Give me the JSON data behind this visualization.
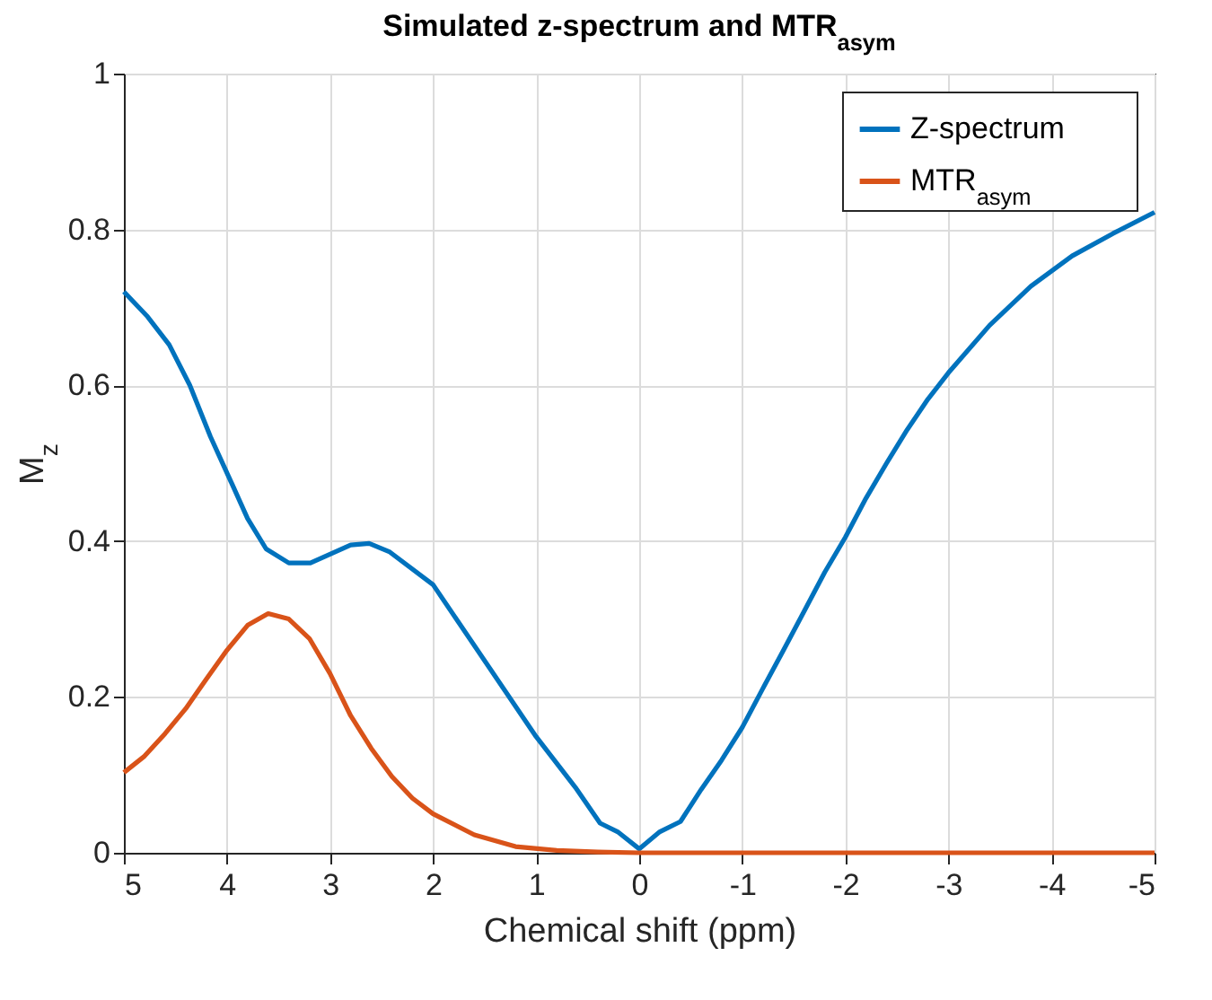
{
  "chart_data": {
    "type": "line",
    "title": "Simulated z-spectrum and MTR$_{asym}$",
    "xlabel": "Chemical shift (ppm)",
    "ylabel": "M$_{z}$",
    "xlim": [
      5,
      -5
    ],
    "xticks": [
      5,
      4,
      3,
      2,
      1,
      0,
      -1,
      -2,
      -3,
      -4,
      -5
    ],
    "ylim": [
      0,
      1
    ],
    "yticks": [
      0,
      0.2,
      0.4,
      0.6,
      0.8,
      1
    ],
    "grid": true,
    "legend": "top right",
    "line_style": "solid",
    "marker": "none",
    "series": [
      {
        "name": "Z-spectrum",
        "color": "#0072bd",
        "x": [
          5,
          4.77,
          4.56,
          4.36,
          4.16,
          3.95,
          3.8,
          3.62,
          3.4,
          3.19,
          2.8,
          2.62,
          2.42,
          2.0,
          1.0,
          0.62,
          0.38,
          0.21,
          0,
          -0.2,
          -0.4,
          -0.6,
          -0.8,
          -1.0,
          -1.2,
          -1.4,
          -1.6,
          -1.8,
          -2.0,
          -2.2,
          -2.4,
          -2.6,
          -2.8,
          -3.0,
          -3.4,
          -3.8,
          -4.2,
          -4.6,
          -5
        ],
        "values": [
          0.72,
          0.688,
          0.652,
          0.6,
          0.534,
          0.473,
          0.429,
          0.39,
          0.372,
          0.372,
          0.395,
          0.397,
          0.386,
          0.344,
          0.149,
          0.084,
          0.038,
          0.027,
          0.005,
          0.027,
          0.04,
          0.081,
          0.119,
          0.161,
          0.211,
          0.26,
          0.31,
          0.36,
          0.405,
          0.455,
          0.5,
          0.543,
          0.582,
          0.616,
          0.677,
          0.727,
          0.766,
          0.795,
          0.822
        ]
      },
      {
        "name": "MTR$_{asym}$",
        "color": "#d95319",
        "x": [
          5,
          4.8,
          4.6,
          4.4,
          4.2,
          4.0,
          3.8,
          3.6,
          3.4,
          3.2,
          3.0,
          2.8,
          2.6,
          2.4,
          2.2,
          2.0,
          1.6,
          1.2,
          0.8,
          0.4,
          0,
          -1,
          -2,
          -3,
          -4,
          -5
        ],
        "values": [
          0.103,
          0.124,
          0.153,
          0.185,
          0.223,
          0.26,
          0.292,
          0.307,
          0.3,
          0.275,
          0.23,
          0.176,
          0.134,
          0.098,
          0.07,
          0.05,
          0.023,
          0.008,
          0.003,
          0.001,
          0,
          0,
          0,
          0,
          0,
          0
        ]
      }
    ]
  }
}
